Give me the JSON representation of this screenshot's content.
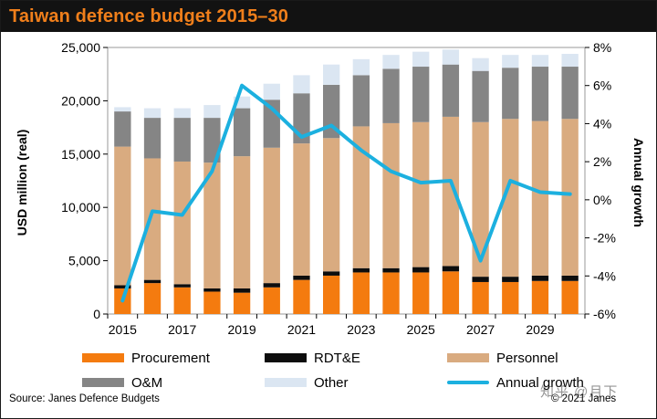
{
  "chart_data": {
    "type": "bar",
    "stacked": true,
    "title": "Taiwan defence budget 2015–30",
    "ylabel": "USD million (real)",
    "y2label": "Annual growth",
    "ylim": [
      0,
      25000
    ],
    "y2lim": [
      -6,
      8
    ],
    "yticks": [
      "0",
      "5,000",
      "10,000",
      "15,000",
      "20,000",
      "25,000"
    ],
    "y2ticks": [
      "-6%",
      "-4%",
      "-2%",
      "0%",
      "2%",
      "4%",
      "6%",
      "8%"
    ],
    "x": [
      2015,
      2016,
      2017,
      2018,
      2019,
      2020,
      2021,
      2022,
      2023,
      2024,
      2025,
      2026,
      2027,
      2028,
      2029,
      2030
    ],
    "xtick_labels": [
      "2015",
      "2017",
      "2019",
      "2021",
      "2023",
      "2025",
      "2027",
      "2029"
    ],
    "series": [
      {
        "name": "Procurement",
        "color": "#f47b0f",
        "values": [
          2400,
          2900,
          2500,
          2100,
          2000,
          2500,
          3200,
          3600,
          3900,
          3900,
          3900,
          4000,
          3000,
          3000,
          3100,
          3100
        ]
      },
      {
        "name": "RDT&E",
        "color": "#0d0d0d",
        "values": [
          300,
          300,
          300,
          300,
          400,
          400,
          400,
          400,
          400,
          400,
          500,
          500,
          500,
          500,
          500,
          500
        ]
      },
      {
        "name": "Personnel",
        "color": "#d9ab80",
        "values": [
          13000,
          11400,
          11500,
          11800,
          12400,
          12700,
          12400,
          12500,
          13300,
          13600,
          13600,
          14000,
          14500,
          14800,
          14500,
          14700
        ]
      },
      {
        "name": "O&M",
        "color": "#858585",
        "values": [
          3300,
          3800,
          4100,
          4200,
          4500,
          4500,
          4700,
          5000,
          4800,
          5100,
          5200,
          4900,
          4800,
          4800,
          5100,
          4900
        ]
      },
      {
        "name": "Other",
        "color": "#dbe6f2",
        "values": [
          400,
          900,
          900,
          1200,
          1100,
          1500,
          1700,
          1900,
          1500,
          1300,
          1400,
          1400,
          1200,
          1200,
          1100,
          1200
        ]
      }
    ],
    "line": {
      "name": "Annual growth",
      "color": "#1cb0df",
      "axis": "right",
      "values": [
        -5.3,
        -0.6,
        -0.8,
        1.5,
        6.0,
        4.8,
        3.3,
        3.9,
        2.6,
        1.5,
        0.9,
        1.0,
        -3.2,
        1.0,
        0.4,
        0.3
      ]
    },
    "legend": [
      "Procurement",
      "RDT&E",
      "Personnel",
      "O&M",
      "Other",
      "Annual growth"
    ],
    "legend_position": "bottom"
  },
  "footer": {
    "source": "Source: Janes Defence Budgets",
    "copyright": "© 2021 Janes",
    "watermark": "知乎 @月下"
  }
}
